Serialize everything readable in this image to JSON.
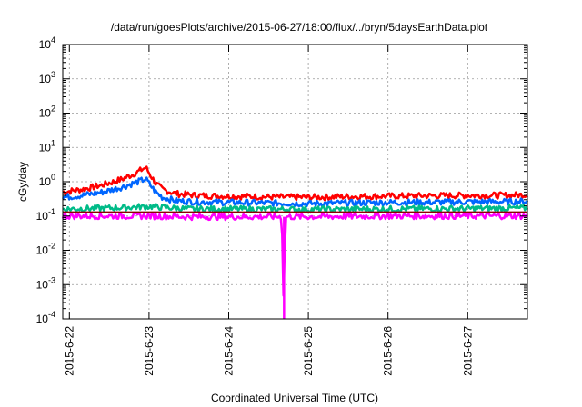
{
  "chart_data": {
    "type": "line",
    "title": "/data/run/goesPlots/archive/2015-06-27/18:00/flux/../bryn/5daysEarthData.plot",
    "xlabel": "Coordinated Universal Time (UTC)",
    "ylabel": "cGy/day",
    "yscale": "log",
    "ylim": [
      0.0001,
      10000
    ],
    "xlim": [
      "2015-06-21 22:00",
      "2015-06-27 18:00"
    ],
    "grid": true,
    "legend": "none",
    "x_ticks": [
      "2015-6-22",
      "2015-6-23",
      "2015-6-24",
      "2015-6-25",
      "2015-6-26",
      "2015-6-27"
    ],
    "y_ticks": [
      {
        "base": "10",
        "exp": "-4",
        "value": 0.0001
      },
      {
        "base": "10",
        "exp": "-3",
        "value": 0.001
      },
      {
        "base": "10",
        "exp": "-2",
        "value": 0.01
      },
      {
        "base": "10",
        "exp": "-1",
        "value": 0.1
      },
      {
        "base": "10",
        "exp": "0",
        "value": 1
      },
      {
        "base": "10",
        "exp": "1",
        "value": 10
      },
      {
        "base": "10",
        "exp": "2",
        "value": 100
      },
      {
        "base": "10",
        "exp": "3",
        "value": 1000
      },
      {
        "base": "10",
        "exp": "4",
        "value": 10000
      }
    ],
    "series": [
      {
        "color": "#ff0000",
        "x": [
          "2015-06-21 22:00",
          "2015-06-22 04:00",
          "2015-06-22 10:00",
          "2015-06-22 16:00",
          "2015-06-22 20:00",
          "2015-06-22 23:00",
          "2015-06-23 02:00",
          "2015-06-23 04:00",
          "2015-06-23 08:00",
          "2015-06-23 14:00",
          "2015-06-24 00:00",
          "2015-06-24 12:00",
          "2015-06-25 00:00",
          "2015-06-25 12:00",
          "2015-06-26 00:00",
          "2015-06-26 12:00",
          "2015-06-27 00:00",
          "2015-06-27 12:00",
          "2015-06-27 18:00"
        ],
        "values": [
          0.5,
          0.6,
          0.8,
          1.2,
          1.8,
          2.6,
          0.9,
          0.6,
          0.45,
          0.4,
          0.38,
          0.36,
          0.35,
          0.37,
          0.38,
          0.39,
          0.4,
          0.4,
          0.42
        ]
      },
      {
        "color": "#0066ff",
        "x": [
          "2015-06-21 22:00",
          "2015-06-22 04:00",
          "2015-06-22 10:00",
          "2015-06-22 16:00",
          "2015-06-22 20:00",
          "2015-06-22 23:00",
          "2015-06-23 02:00",
          "2015-06-23 04:00",
          "2015-06-23 08:00",
          "2015-06-23 14:00",
          "2015-06-24 00:00",
          "2015-06-24 12:00",
          "2015-06-25 00:00",
          "2015-06-25 12:00",
          "2015-06-26 00:00",
          "2015-06-26 12:00",
          "2015-06-27 00:00",
          "2015-06-27 12:00",
          "2015-06-27 18:00"
        ],
        "values": [
          0.35,
          0.4,
          0.5,
          0.7,
          0.95,
          1.2,
          0.5,
          0.35,
          0.28,
          0.26,
          0.25,
          0.24,
          0.23,
          0.24,
          0.25,
          0.25,
          0.26,
          0.26,
          0.27
        ]
      },
      {
        "color": "#00bb88",
        "x": [
          "2015-06-21 22:00",
          "2015-06-22 12:00",
          "2015-06-23 00:00",
          "2015-06-23 12:00",
          "2015-06-24 00:00",
          "2015-06-25 00:00",
          "2015-06-26 00:00",
          "2015-06-27 00:00",
          "2015-06-27 18:00"
        ],
        "values": [
          0.16,
          0.17,
          0.19,
          0.16,
          0.16,
          0.155,
          0.16,
          0.165,
          0.17
        ]
      },
      {
        "color": "#ff00ff",
        "x": [
          "2015-06-21 22:00",
          "2015-06-22 12:00",
          "2015-06-23 00:00",
          "2015-06-23 12:00",
          "2015-06-24 00:00",
          "2015-06-24 16:00",
          "2015-06-24 16:40",
          "2015-06-24 17:00",
          "2015-06-25 00:00",
          "2015-06-26 00:00",
          "2015-06-27 00:00",
          "2015-06-27 18:00"
        ],
        "values": [
          0.1,
          0.1,
          0.1,
          0.095,
          0.095,
          0.095,
          0.0001,
          0.095,
          0.095,
          0.1,
          0.1,
          0.1
        ]
      },
      {
        "color": "#8b0000",
        "x": [
          "2015-06-21 22:00",
          "2015-06-27 18:00"
        ],
        "values": [
          0.13,
          0.13
        ]
      }
    ]
  }
}
